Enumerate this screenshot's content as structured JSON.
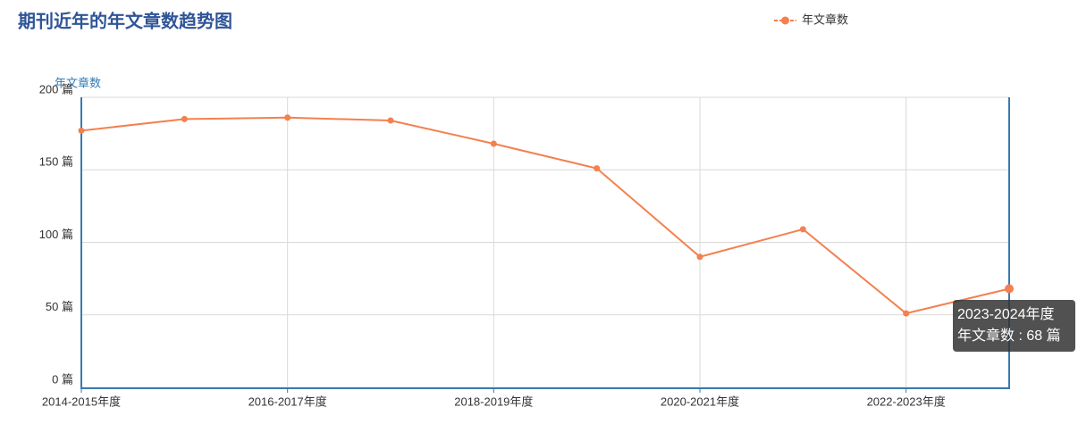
{
  "chart_data": {
    "type": "line",
    "title": "期刊近年的年文章数趋势图",
    "y_axis_name": "年文章数",
    "categories": [
      "2014-2015年度",
      null,
      "2016-2017年度",
      null,
      "2018-2019年度",
      null,
      "2020-2021年度",
      null,
      "2022-2023年度",
      null
    ],
    "series": [
      {
        "name": "年文章数",
        "color": "#f4804f",
        "values": [
          177,
          185,
          186,
          184,
          168,
          151,
          90,
          109,
          51,
          68
        ]
      }
    ],
    "ylim": [
      0,
      200
    ],
    "yticks": [
      {
        "value": 0,
        "label": "0 篇"
      },
      {
        "value": 50,
        "label": "50 篇"
      },
      {
        "value": 100,
        "label": "100 篇"
      },
      {
        "value": 150,
        "label": "150 篇"
      },
      {
        "value": 200,
        "label": "200 篇"
      }
    ],
    "grid": true,
    "legend": "top-right",
    "tooltip": {
      "title": "2023-2024年度",
      "text": "年文章数 : 68 篇"
    }
  }
}
